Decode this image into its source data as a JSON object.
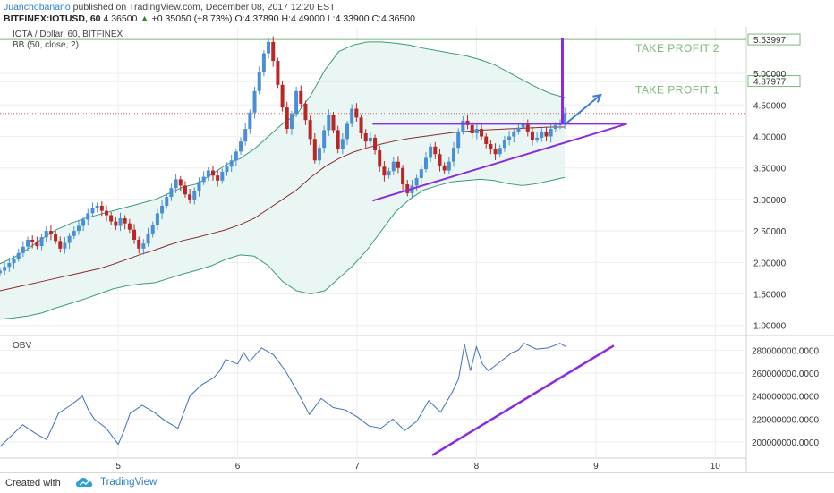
{
  "header": {
    "author": "Juanchobanano",
    "published_text": "published on TradingView.com, December 08, 2017 12:20 EST",
    "symbol_line": "BITFINEX:IOTUSD, 60",
    "last_price": "4.36500",
    "change": "+0.35050 (+8.73%)",
    "ohlc": {
      "o": "O:4.37890",
      "h": "H:4.49000",
      "l": "L:4.33900",
      "c": "C:4.36500"
    }
  },
  "footer": {
    "created_with": "Created with",
    "brand": "TradingView"
  },
  "colors": {
    "candle_up": "#4a8fd4",
    "candle_down": "#b82626",
    "bb_band": "#3a9a7a",
    "bb_fill": "#e6f4f2",
    "bb_basis": "#8b2a2a",
    "obv_line": "#3f70b8",
    "annotation": "#8a2be2",
    "arrow": "#3a7fd5",
    "take_profit": "#7ab87a",
    "last_price_line": "#d06060"
  },
  "chart_data": [
    {
      "type": "candlestick",
      "name": "price",
      "legend": [
        "IOTA / Dollar, 60, BITFINEX",
        "BB (50, close, 2)"
      ],
      "x_ticks": [
        "5",
        "6",
        "7",
        "8",
        "9",
        "10"
      ],
      "y_ticks": [
        "1.00000",
        "1.50000",
        "2.00000",
        "2.50000",
        "3.00000",
        "3.50000",
        "4.00000",
        "4.50000",
        "5.00000"
      ],
      "ylim": [
        0.84,
        5.74
      ],
      "xlim": [
        4.01,
        10.26
      ],
      "candles_close": [
        1.87,
        1.93,
        1.99,
        2.06,
        2.15,
        2.25,
        2.36,
        2.32,
        2.26,
        2.4,
        2.5,
        2.45,
        2.34,
        2.22,
        2.31,
        2.42,
        2.5,
        2.58,
        2.68,
        2.78,
        2.86,
        2.9,
        2.82,
        2.75,
        2.65,
        2.58,
        2.7,
        2.62,
        2.52,
        2.36,
        2.22,
        2.3,
        2.46,
        2.6,
        2.78,
        2.9,
        3.04,
        3.18,
        3.32,
        3.22,
        3.08,
        3.0,
        3.14,
        3.28,
        3.36,
        3.46,
        3.38,
        3.3,
        3.44,
        3.52,
        3.62,
        3.76,
        3.92,
        4.12,
        4.38,
        4.72,
        5.02,
        5.32,
        5.5,
        5.2,
        4.82,
        4.46,
        4.12,
        4.36,
        4.72,
        4.52,
        4.26,
        3.96,
        3.62,
        3.82,
        4.1,
        4.34,
        4.1,
        3.8,
        3.96,
        4.2,
        4.44,
        4.3,
        4.05,
        3.92,
        3.98,
        3.78,
        3.52,
        3.38,
        3.45,
        3.6,
        3.5,
        3.24,
        3.1,
        3.22,
        3.34,
        3.48,
        3.66,
        3.84,
        3.72,
        3.54,
        3.46,
        3.6,
        3.82,
        4.08,
        4.25,
        4.18,
        4.05,
        4.12,
        4.0,
        3.88,
        3.8,
        3.72,
        3.82,
        3.94,
        4.0,
        4.08,
        4.14,
        4.22,
        4.08,
        3.95,
        3.98,
        4.08,
        4.0,
        4.12,
        4.18,
        4.2,
        4.37
      ],
      "bb_upper": [
        1.98,
        2.08,
        2.22,
        2.38,
        2.52,
        2.62,
        2.7,
        2.76,
        2.82,
        2.88,
        2.94,
        3.0,
        3.1,
        3.2,
        3.25,
        3.4,
        3.55,
        3.65,
        3.8,
        4.0,
        4.2,
        4.35,
        4.65,
        5.05,
        5.35,
        5.45,
        5.5,
        5.5,
        5.48,
        5.45,
        5.4,
        5.36,
        5.32,
        5.28,
        5.22,
        5.14,
        5.02,
        4.9,
        4.78,
        4.68,
        4.62
      ],
      "bb_basis": [
        1.55,
        1.6,
        1.65,
        1.7,
        1.75,
        1.8,
        1.85,
        1.9,
        1.97,
        2.05,
        2.13,
        2.2,
        2.28,
        2.35,
        2.4,
        2.46,
        2.52,
        2.6,
        2.7,
        2.85,
        3.0,
        3.15,
        3.35,
        3.52,
        3.65,
        3.75,
        3.82,
        3.88,
        3.93,
        3.97,
        4.0,
        4.03,
        4.06,
        4.08,
        4.1,
        4.11,
        4.12,
        4.13,
        4.14,
        4.15,
        4.15
      ],
      "bb_lower": [
        1.1,
        1.12,
        1.15,
        1.2,
        1.28,
        1.35,
        1.42,
        1.5,
        1.58,
        1.63,
        1.66,
        1.68,
        1.75,
        1.82,
        1.88,
        1.95,
        2.05,
        2.12,
        2.1,
        1.95,
        1.7,
        1.55,
        1.5,
        1.55,
        1.75,
        1.95,
        2.2,
        2.5,
        2.8,
        3.0,
        3.15,
        3.22,
        3.28,
        3.3,
        3.32,
        3.3,
        3.25,
        3.22,
        3.25,
        3.3,
        3.35
      ],
      "horizontal_lines": [
        {
          "label": "TAKE PROFIT 2",
          "price": 5.53997,
          "price_label": "5.53997"
        },
        {
          "label": "TAKE PROFIT 1",
          "price": 4.87977,
          "price_label": "4.87977"
        }
      ],
      "last_price": 4.365
    },
    {
      "type": "line",
      "name": "OBV",
      "legend": "OBV",
      "y_ticks": [
        "200000000.0000",
        "220000000.0000",
        "240000000.0000",
        "260000000.0000",
        "280000000.0000"
      ],
      "ylim": [
        186000000,
        292000000
      ],
      "x": [
        4.01,
        4.1,
        4.2,
        4.3,
        4.4,
        4.5,
        4.6,
        4.7,
        4.75,
        4.8,
        4.9,
        5.0,
        5.05,
        5.1,
        5.2,
        5.3,
        5.4,
        5.5,
        5.6,
        5.7,
        5.8,
        5.85,
        5.9,
        6.0,
        6.05,
        6.1,
        6.2,
        6.3,
        6.4,
        6.5,
        6.55,
        6.6,
        6.7,
        6.8,
        6.9,
        7.0,
        7.1,
        7.2,
        7.3,
        7.4,
        7.5,
        7.6,
        7.7,
        7.8,
        7.85,
        7.9,
        7.95,
        8.0,
        8.05,
        8.1,
        8.2,
        8.3,
        8.35,
        8.4,
        8.5,
        8.6,
        8.7,
        8.75
      ],
      "values": [
        196000000,
        205000000,
        215000000,
        208000000,
        202000000,
        225000000,
        232000000,
        240000000,
        228000000,
        220000000,
        212000000,
        198000000,
        210000000,
        225000000,
        232000000,
        226000000,
        218000000,
        212000000,
        240000000,
        250000000,
        256000000,
        262000000,
        272000000,
        268000000,
        278000000,
        270000000,
        282000000,
        276000000,
        262000000,
        244000000,
        234000000,
        224000000,
        238000000,
        230000000,
        228000000,
        222000000,
        214000000,
        212000000,
        220000000,
        210000000,
        218000000,
        236000000,
        226000000,
        244000000,
        255000000,
        285000000,
        262000000,
        283000000,
        268000000,
        262000000,
        270000000,
        278000000,
        280000000,
        286000000,
        281000000,
        282000000,
        286000000,
        283000000
      ]
    }
  ],
  "annotations": {
    "triangle_top_price": 4.2,
    "triangle_top_x": [
      7.13,
      9.26
    ],
    "triangle_bottom": {
      "x": [
        7.13,
        9.26
      ],
      "y": [
        2.98,
        4.2
      ]
    },
    "breakout_x": 8.72,
    "breakout_y": [
      4.2,
      5.57
    ],
    "arrow": {
      "x": [
        8.76,
        9.04
      ],
      "y": [
        4.22,
        4.66
      ]
    },
    "obv_trendline": {
      "x": [
        7.63,
        9.15
      ],
      "y": [
        188500000,
        284000000
      ]
    }
  }
}
